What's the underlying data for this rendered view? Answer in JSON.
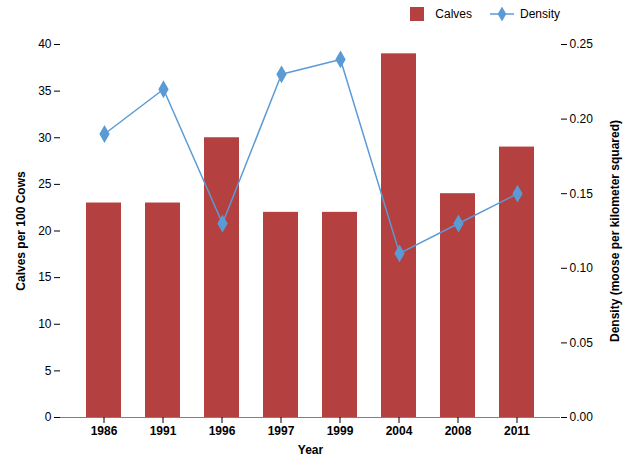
{
  "chart_data": {
    "type": "bar",
    "xlabel": "Year",
    "ylabel": "Calves per 100 Cows",
    "y2label": "Density (moose per kilometer squared)",
    "categories": [
      "1986",
      "1991",
      "1996",
      "1997",
      "1999",
      "2004",
      "2008",
      "2011"
    ],
    "series": [
      {
        "name": "Calves",
        "type": "bar",
        "color": "#b54040",
        "values": [
          23,
          23,
          30,
          22,
          22,
          39,
          24,
          29
        ]
      },
      {
        "name": "Density",
        "type": "line",
        "axis": "y2",
        "color": "#5b9bd5",
        "marker": "diamond",
        "values": [
          0.19,
          0.22,
          0.13,
          0.23,
          0.24,
          0.11,
          0.13,
          0.15
        ]
      }
    ],
    "ylim": [
      0,
      40
    ],
    "yticks": [
      0,
      5,
      10,
      15,
      20,
      25,
      30,
      35,
      40
    ],
    "y2lim": [
      0,
      0.25
    ],
    "y2ticks": [
      {
        "value": 0,
        "label": "0.00"
      },
      0.05,
      {
        "value": 0.1,
        "label": "0.10"
      },
      0.15,
      {
        "value": 0.2,
        "label": "0.20"
      },
      0.25
    ],
    "legend": "upper right"
  }
}
